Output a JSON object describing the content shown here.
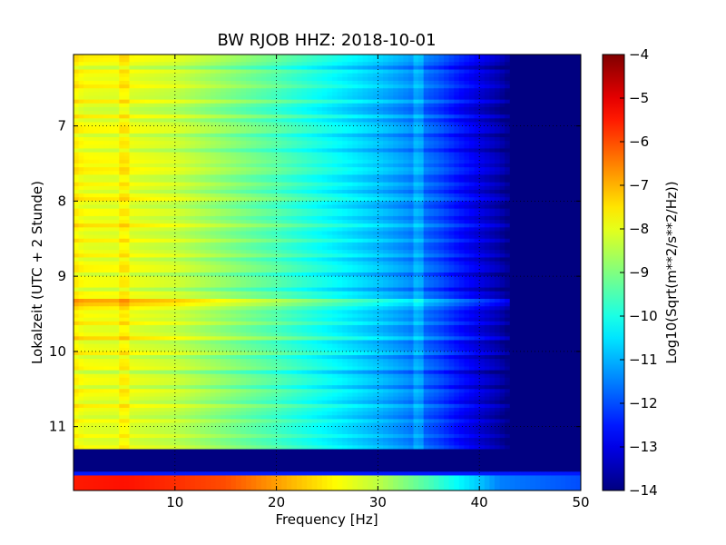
{
  "chart_data": {
    "type": "heatmap",
    "title": "BW RJOB HHZ: 2018-10-01",
    "xlabel": "Frequency [Hz]",
    "ylabel": "Lokalzeit (UTC + 2 Stunde)",
    "colorbar_label": "Log10(Sqrt(m**2/s**2/Hz))",
    "xlim": [
      0,
      50
    ],
    "ylim": [
      11.85,
      6.05
    ],
    "y_inverted": true,
    "xticks": [
      10,
      20,
      30,
      40,
      50
    ],
    "xtick_labels": [
      "10",
      "20",
      "30",
      "40",
      "50"
    ],
    "yticks": [
      7,
      8,
      9,
      10,
      11
    ],
    "ytick_labels": [
      "7",
      "8",
      "9",
      "10",
      "11"
    ],
    "clim": [
      -14,
      -4
    ],
    "cbar_ticks": [
      -4,
      -5,
      -6,
      -7,
      -8,
      -9,
      -10,
      -11,
      -12,
      -13,
      -14
    ],
    "cbar_tick_labels": [
      "−4",
      "−5",
      "−6",
      "−7",
      "−8",
      "−9",
      "−10",
      "−11",
      "−12",
      "−13",
      "−14"
    ],
    "colormap": "jet",
    "grid": true,
    "spectrum_profile": {
      "frequency_hz": [
        0,
        1,
        5,
        10,
        15,
        20,
        25,
        30,
        33,
        36,
        38,
        40,
        42,
        43,
        50
      ],
      "level": [
        -7.6,
        -7.9,
        -8.0,
        -8.3,
        -8.9,
        -9.5,
        -10.2,
        -10.9,
        -11.4,
        -12.0,
        -12.6,
        -13.1,
        -13.6,
        -14.0,
        -14.0
      ]
    },
    "band_offsets": [
      {
        "time": 6.1,
        "offset": 0.4
      },
      {
        "time": 6.42,
        "offset": 0.5
      },
      {
        "time": 6.8,
        "offset": -0.5
      },
      {
        "time": 7.0,
        "offset": 0.3
      },
      {
        "time": 7.5,
        "offset": 0.7
      },
      {
        "time": 7.6,
        "offset": 0.3
      },
      {
        "time": 7.95,
        "offset": 0.4
      },
      {
        "time": 8.3,
        "offset": 0.5
      },
      {
        "time": 8.85,
        "offset": 0.3
      },
      {
        "time": 9.35,
        "offset": 2.4
      },
      {
        "time": 9.55,
        "offset": 0.5
      },
      {
        "time": 9.8,
        "offset": 0.4
      },
      {
        "time": 10.3,
        "offset": -0.3
      },
      {
        "time": 10.9,
        "offset": -0.4
      },
      {
        "time": 11.1,
        "offset": -0.3
      }
    ],
    "gaps": [
      {
        "from": 11.28,
        "to": 11.6,
        "value": -14
      },
      {
        "from": 11.62,
        "to": 11.65,
        "value": -12.5
      }
    ],
    "loud_segment": {
      "from": 11.65,
      "to": 11.85,
      "frequency_hz": [
        0,
        5,
        15,
        25,
        30,
        35,
        40,
        42,
        50
      ],
      "level": [
        -5.5,
        -5.4,
        -6.0,
        -7.6,
        -8.4,
        -9.5,
        -10.8,
        -11.5,
        -12.0
      ]
    },
    "narrowband_lines": [
      {
        "frequency_hz": 5.0,
        "offset": 0.35
      },
      {
        "frequency_hz": 34.0,
        "offset": 0.5
      }
    ]
  }
}
